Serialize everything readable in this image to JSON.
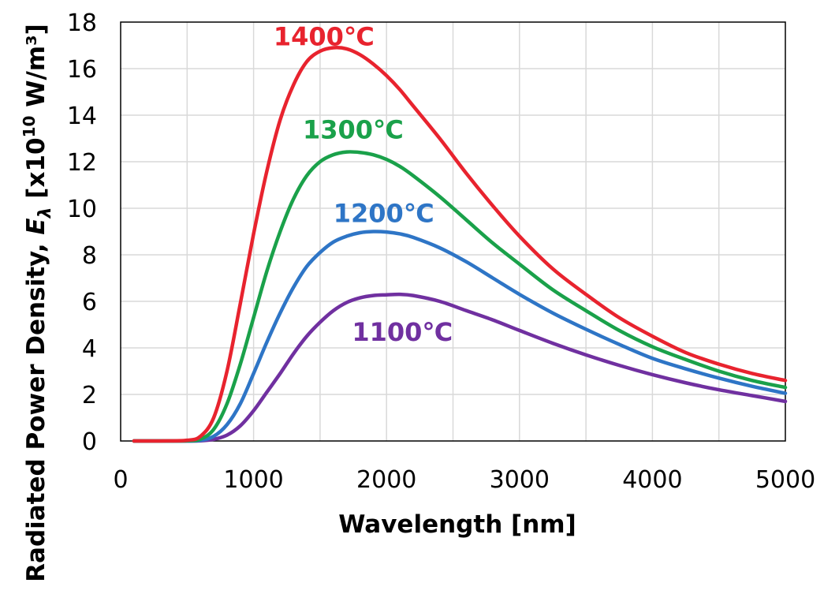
{
  "chart_data": {
    "type": "line",
    "title": "",
    "xlabel": "Wavelength [nm]",
    "ylabel": {
      "prefix": "Radiated Power Density, ",
      "symbol": "E",
      "subscript": "λ",
      "suffix": " [x10",
      "exponent": "10",
      "unit": " W/m³]"
    },
    "xlim": [
      0,
      5000
    ],
    "ylim": [
      0,
      18
    ],
    "xticks": [
      0,
      1000,
      2000,
      3000,
      4000,
      5000
    ],
    "yticks": [
      0,
      2,
      4,
      6,
      8,
      10,
      12,
      14,
      16,
      18
    ],
    "grid": true,
    "series": [
      {
        "name": "1100℃",
        "color": "#7030a0",
        "x": [
          100,
          300,
          500,
          600,
          700,
          800,
          900,
          1000,
          1100,
          1200,
          1300,
          1400,
          1500,
          1600,
          1700,
          1800,
          1900,
          2000,
          2100,
          2200,
          2400,
          2600,
          2800,
          3000,
          3250,
          3500,
          3750,
          4000,
          4250,
          4500,
          4750,
          5000
        ],
        "y": [
          0,
          0,
          0,
          0.01,
          0.07,
          0.25,
          0.65,
          1.3,
          2.1,
          2.9,
          3.75,
          4.5,
          5.1,
          5.6,
          5.95,
          6.15,
          6.25,
          6.28,
          6.3,
          6.25,
          6.0,
          5.6,
          5.2,
          4.75,
          4.2,
          3.7,
          3.25,
          2.85,
          2.5,
          2.2,
          1.95,
          1.7
        ]
      },
      {
        "name": "1200℃",
        "color": "#2e75c6",
        "x": [
          100,
          300,
          500,
          600,
          700,
          800,
          900,
          1000,
          1100,
          1200,
          1300,
          1400,
          1500,
          1600,
          1700,
          1800,
          1900,
          2000,
          2100,
          2200,
          2400,
          2600,
          2800,
          3000,
          3250,
          3500,
          3750,
          4000,
          4250,
          4500,
          4750,
          5000
        ],
        "y": [
          0,
          0,
          0,
          0.03,
          0.2,
          0.7,
          1.6,
          2.9,
          4.25,
          5.5,
          6.6,
          7.5,
          8.1,
          8.55,
          8.8,
          8.95,
          9.0,
          8.98,
          8.9,
          8.75,
          8.3,
          7.7,
          7.0,
          6.3,
          5.5,
          4.8,
          4.15,
          3.55,
          3.1,
          2.7,
          2.35,
          2.05
        ]
      },
      {
        "name": "1300℃",
        "color": "#1aa14a",
        "x": [
          100,
          300,
          500,
          600,
          700,
          800,
          900,
          1000,
          1100,
          1200,
          1300,
          1400,
          1500,
          1600,
          1700,
          1800,
          1900,
          2000,
          2100,
          2200,
          2400,
          2600,
          2800,
          3000,
          3250,
          3500,
          3750,
          4000,
          4250,
          4500,
          4750,
          5000
        ],
        "y": [
          0,
          0,
          0.01,
          0.08,
          0.5,
          1.6,
          3.3,
          5.3,
          7.3,
          9.0,
          10.4,
          11.4,
          12.0,
          12.3,
          12.42,
          12.4,
          12.3,
          12.1,
          11.8,
          11.4,
          10.5,
          9.5,
          8.5,
          7.6,
          6.5,
          5.6,
          4.75,
          4.05,
          3.5,
          3.0,
          2.6,
          2.3
        ]
      },
      {
        "name": "1400℃",
        "color": "#e8232e",
        "x": [
          100,
          300,
          500,
          600,
          700,
          800,
          900,
          1000,
          1100,
          1200,
          1300,
          1400,
          1500,
          1600,
          1700,
          1800,
          1900,
          2000,
          2100,
          2200,
          2400,
          2600,
          2800,
          3000,
          3250,
          3500,
          3750,
          4000,
          4250,
          4500,
          4750,
          5000
        ],
        "y": [
          0,
          0,
          0.03,
          0.2,
          1.0,
          3.0,
          5.9,
          8.9,
          11.6,
          13.8,
          15.3,
          16.3,
          16.75,
          16.9,
          16.85,
          16.6,
          16.2,
          15.7,
          15.1,
          14.4,
          13.0,
          11.5,
          10.1,
          8.8,
          7.4,
          6.3,
          5.3,
          4.5,
          3.8,
          3.3,
          2.9,
          2.6
        ]
      }
    ],
    "annotations": [
      {
        "text": "1400℃",
        "series": "1400℃",
        "x": 1150,
        "y": 17.0
      },
      {
        "text": "1300℃",
        "series": "1300℃",
        "x": 1370,
        "y": 13.0
      },
      {
        "text": "1200℃",
        "series": "1200℃",
        "x": 1600,
        "y": 9.4
      },
      {
        "text": "1100℃",
        "series": "1100℃",
        "x": 1740,
        "y": 4.3
      }
    ]
  }
}
